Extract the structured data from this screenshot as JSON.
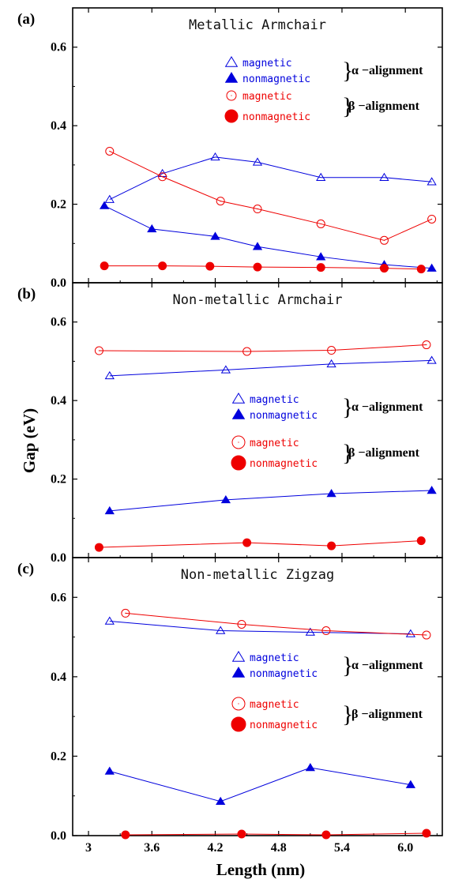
{
  "chart_data": [
    {
      "type": "line",
      "panel_label": "(a)",
      "title": "Metallic Armchair",
      "xlim": [
        2.85,
        6.35
      ],
      "ylim": [
        0,
        0.7
      ],
      "series": [
        {
          "name": "magnetic",
          "group": "alpha",
          "color": "#0000dd",
          "marker": "triangle-open",
          "x": [
            3.2,
            3.7,
            4.2,
            4.6,
            5.2,
            5.8,
            6.25
          ],
          "y": [
            0.212,
            0.278,
            0.32,
            0.307,
            0.268,
            0.268,
            0.257
          ]
        },
        {
          "name": "nonmagnetic",
          "group": "alpha",
          "color": "#0000dd",
          "marker": "triangle-filled",
          "x": [
            3.15,
            3.6,
            4.2,
            4.6,
            5.2,
            5.8,
            6.25
          ],
          "y": [
            0.196,
            0.137,
            0.118,
            0.092,
            0.066,
            0.046,
            0.037
          ]
        },
        {
          "name": "magnetic",
          "group": "beta",
          "color": "#ee0000",
          "marker": "circle-open",
          "x": [
            3.2,
            3.7,
            4.25,
            4.6,
            5.2,
            5.8,
            6.25
          ],
          "y": [
            0.335,
            0.27,
            0.208,
            0.188,
            0.15,
            0.108,
            0.162
          ]
        },
        {
          "name": "nonmagnetic",
          "group": "beta",
          "color": "#ee0000",
          "marker": "circle-filled",
          "x": [
            3.15,
            3.7,
            4.15,
            4.6,
            5.2,
            5.8,
            6.15
          ],
          "y": [
            0.043,
            0.043,
            0.042,
            0.04,
            0.039,
            0.037,
            0.035
          ]
        }
      ]
    },
    {
      "type": "line",
      "panel_label": "(b)",
      "title": "Non-metallic Armchair",
      "xlim": [
        2.85,
        6.35
      ],
      "ylim": [
        0,
        0.7
      ],
      "series": [
        {
          "name": "magnetic",
          "group": "alpha",
          "color": "#0000dd",
          "marker": "triangle-open",
          "x": [
            3.2,
            4.3,
            5.3,
            6.25
          ],
          "y": [
            0.463,
            0.478,
            0.493,
            0.502
          ]
        },
        {
          "name": "nonmagnetic",
          "group": "alpha",
          "color": "#0000dd",
          "marker": "triangle-filled",
          "x": [
            3.2,
            4.3,
            5.3,
            6.25
          ],
          "y": [
            0.119,
            0.147,
            0.163,
            0.171
          ]
        },
        {
          "name": "magnetic",
          "group": "beta",
          "color": "#ee0000",
          "marker": "circle-open",
          "x": [
            3.1,
            4.5,
            5.3,
            6.2
          ],
          "y": [
            0.527,
            0.525,
            0.528,
            0.542
          ]
        },
        {
          "name": "nonmagnetic",
          "group": "beta",
          "color": "#ee0000",
          "marker": "circle-filled",
          "x": [
            3.1,
            4.5,
            5.3,
            6.15
          ],
          "y": [
            0.026,
            0.038,
            0.03,
            0.043
          ]
        }
      ]
    },
    {
      "type": "line",
      "panel_label": "(c)",
      "title": "Non-metallic Zigzag",
      "xlim": [
        2.85,
        6.35
      ],
      "ylim": [
        0,
        0.7
      ],
      "series": [
        {
          "name": "magnetic",
          "group": "alpha",
          "color": "#0000dd",
          "marker": "triangle-open",
          "x": [
            3.2,
            4.25,
            5.1,
            6.05
          ],
          "y": [
            0.54,
            0.516,
            0.512,
            0.508
          ]
        },
        {
          "name": "nonmagnetic",
          "group": "alpha",
          "color": "#0000dd",
          "marker": "triangle-filled",
          "x": [
            3.2,
            4.25,
            5.1,
            6.05
          ],
          "y": [
            0.162,
            0.086,
            0.171,
            0.128
          ]
        },
        {
          "name": "magnetic",
          "group": "beta",
          "color": "#ee0000",
          "marker": "circle-open",
          "x": [
            3.35,
            4.45,
            5.25,
            6.2
          ],
          "y": [
            0.56,
            0.532,
            0.516,
            0.505
          ]
        },
        {
          "name": "nonmagnetic",
          "group": "beta",
          "color": "#ee0000",
          "marker": "circle-filled",
          "x": [
            3.35,
            4.45,
            5.25,
            6.2
          ],
          "y": [
            0.002,
            0.004,
            0.002,
            0.006
          ]
        }
      ]
    }
  ],
  "axes": {
    "xlabel": "Length (nm)",
    "ylabel": "Gap (eV)",
    "xticks": [
      {
        "value": 3.0,
        "label": "3"
      },
      {
        "value": 3.6,
        "label": "3.6"
      },
      {
        "value": 4.2,
        "label": "4.2"
      },
      {
        "value": 4.8,
        "label": "4.8"
      },
      {
        "value": 5.4,
        "label": "5.4"
      },
      {
        "value": 6.0,
        "label": "6.0"
      }
    ],
    "yticks": [
      {
        "value": 0.0,
        "label": "0.0"
      },
      {
        "value": 0.2,
        "label": "0.2"
      },
      {
        "value": 0.4,
        "label": "0.4"
      },
      {
        "value": 0.6,
        "label": "0.6"
      }
    ]
  },
  "legend": {
    "entries": [
      {
        "label": "magnetic",
        "group": "alpha",
        "color": "#0000dd",
        "marker": "triangle-open"
      },
      {
        "label": "nonmagnetic",
        "group": "alpha",
        "color": "#0000dd",
        "marker": "triangle-filled"
      },
      {
        "label": "magnetic",
        "group": "beta",
        "color": "#ee0000",
        "marker": "circle-open"
      },
      {
        "label": "nonmagnetic",
        "group": "beta",
        "color": "#ee0000",
        "marker": "circle-filled"
      }
    ],
    "brace": "}",
    "alpha_label": "α −alignment",
    "beta_label": "β −alignment"
  }
}
